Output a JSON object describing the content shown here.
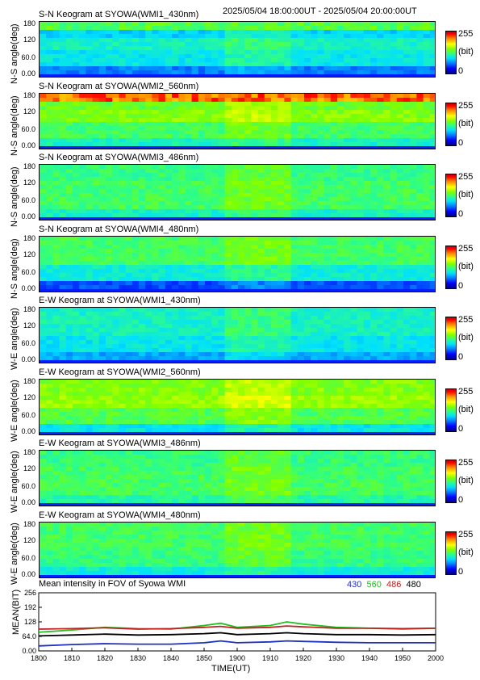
{
  "header": {
    "date_range": "2025/05/04 18:00:00UT - 2025/05/04 20:00:00UT"
  },
  "colorbar": {
    "max": "255",
    "unit": "(bit)",
    "min": "0"
  },
  "keogram_ticks": [
    "180",
    "120",
    "60.0",
    "0.00"
  ],
  "panels": [
    {
      "title": "S-N Keogram at SYOWA(WMI1_430nm)",
      "ylabel": "N-S angle(deg)"
    },
    {
      "title": "S-N Keogram at SYOWA(WMI2_560nm)",
      "ylabel": "N-S angle(deg)"
    },
    {
      "title": "S-N Keogram at SYOWA(WMI3_486nm)",
      "ylabel": "N-S angle(deg)"
    },
    {
      "title": "S-N Keogram at SYOWA(WMI4_480nm)",
      "ylabel": "N-S angle(deg)"
    },
    {
      "title": "E-W Keogram at SYOWA(WMI1_430nm)",
      "ylabel": "W-E angle(deg)"
    },
    {
      "title": "E-W Keogram at SYOWA(WMI2_560nm)",
      "ylabel": "W-E angle(deg)"
    },
    {
      "title": "E-W Keogram at SYOWA(WMI3_486nm)",
      "ylabel": "W-E angle(deg)"
    },
    {
      "title": "E-W Keogram at SYOWA(WMI4_480nm)",
      "ylabel": "W-E angle(deg)"
    }
  ],
  "mean_panel": {
    "title": "Mean intensity in FOV of Syowa WMI",
    "ylabel": "MEAN(BIT)",
    "yticks": [
      "256",
      "192",
      "128",
      "64.0",
      "0.00"
    ],
    "legend": [
      {
        "label": "430",
        "color": "#2030c0"
      },
      {
        "label": "560",
        "color": "#20c020"
      },
      {
        "label": "486",
        "color": "#c02020"
      },
      {
        "label": "480",
        "color": "#000000"
      }
    ]
  },
  "xaxis": {
    "label": "TIME(UT)",
    "ticks": [
      "1800",
      "1810",
      "1820",
      "1830",
      "1840",
      "1850",
      "1900",
      "1910",
      "1920",
      "1930",
      "1940",
      "1950",
      "2000"
    ]
  },
  "chart_data": {
    "type": "line",
    "title": "Mean intensity in FOV of Syowa WMI",
    "xlabel": "TIME(UT)",
    "ylabel": "MEAN(BIT)",
    "x": [
      "1800",
      "1810",
      "1820",
      "1830",
      "1840",
      "1850",
      "1855",
      "1900",
      "1910",
      "1915",
      "1920",
      "1930",
      "1940",
      "1950",
      "2000"
    ],
    "ylim": [
      0,
      256
    ],
    "series": [
      {
        "name": "430",
        "color": "#2030c0",
        "values": [
          22,
          28,
          32,
          30,
          30,
          36,
          44,
          36,
          40,
          44,
          42,
          38,
          36,
          36,
          36
        ]
      },
      {
        "name": "560",
        "color": "#20c020",
        "values": [
          82,
          92,
          104,
          98,
          96,
          112,
          122,
          104,
          112,
          128,
          118,
          104,
          100,
          96,
          100
        ]
      },
      {
        "name": "486",
        "color": "#c02020",
        "values": [
          96,
          98,
          102,
          96,
          98,
          104,
          108,
          100,
          104,
          110,
          106,
          100,
          100,
          98,
          100
        ]
      },
      {
        "name": "480",
        "color": "#000000",
        "values": [
          66,
          70,
          74,
          70,
          72,
          76,
          80,
          72,
          76,
          80,
          76,
          72,
          72,
          70,
          72
        ]
      }
    ]
  }
}
